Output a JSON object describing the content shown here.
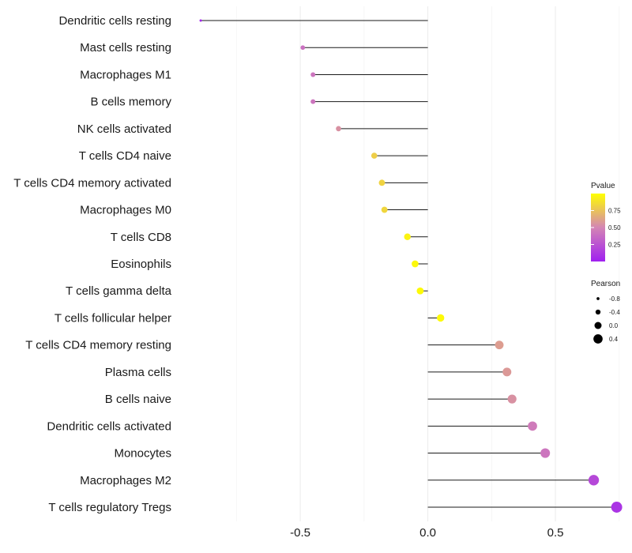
{
  "chart_data": {
    "type": "lollipop",
    "title": "",
    "xlabel": "",
    "ylabel": "",
    "xlim": [
      -0.98,
      0.8
    ],
    "xticks": [
      -0.5,
      0.0,
      0.5
    ],
    "xtick_labels": [
      "-0.5",
      "0.0",
      "0.5"
    ],
    "grid": true,
    "legend_position": "right",
    "categories": [
      "Dendritic cells resting",
      "Mast cells resting",
      "Macrophages M1",
      "B cells memory",
      "NK cells activated",
      "T cells CD4 naive",
      "T cells CD4 memory activated",
      "Macrophages M0",
      "T cells CD8",
      "Eosinophils",
      "T cells gamma delta",
      "T cells follicular helper",
      "T cells CD4 memory resting",
      "Plasma cells",
      "B cells naive",
      "Dendritic cells activated",
      "Monocytes",
      "Macrophages M2",
      "T cells regulatory  Tregs"
    ],
    "pearson": [
      -0.89,
      -0.49,
      -0.45,
      -0.45,
      -0.35,
      -0.21,
      -0.18,
      -0.17,
      -0.08,
      -0.05,
      -0.03,
      0.05,
      0.28,
      0.31,
      0.33,
      0.41,
      0.46,
      0.65,
      0.74
    ],
    "pvalue": [
      0.02,
      0.4,
      0.42,
      0.42,
      0.55,
      0.8,
      0.82,
      0.83,
      0.95,
      0.97,
      0.98,
      0.98,
      0.6,
      0.58,
      0.55,
      0.45,
      0.42,
      0.2,
      0.1
    ],
    "legend_pvalue": {
      "title": "Pvalue",
      "ticks": [
        0.25,
        0.5,
        0.75
      ],
      "tick_labels": [
        "0.25",
        "0.50",
        "0.75"
      ],
      "range": [
        0.0,
        1.0
      ],
      "color_low": "#a020f0",
      "color_mid": "#d485b4",
      "color_high": "#ffff00"
    },
    "legend_pearson": {
      "title": "Pearson",
      "values": [
        -0.8,
        -0.4,
        0.0,
        0.4
      ],
      "labels": [
        "-0.8",
        "-0.4",
        "0.0",
        "0.4"
      ]
    }
  }
}
